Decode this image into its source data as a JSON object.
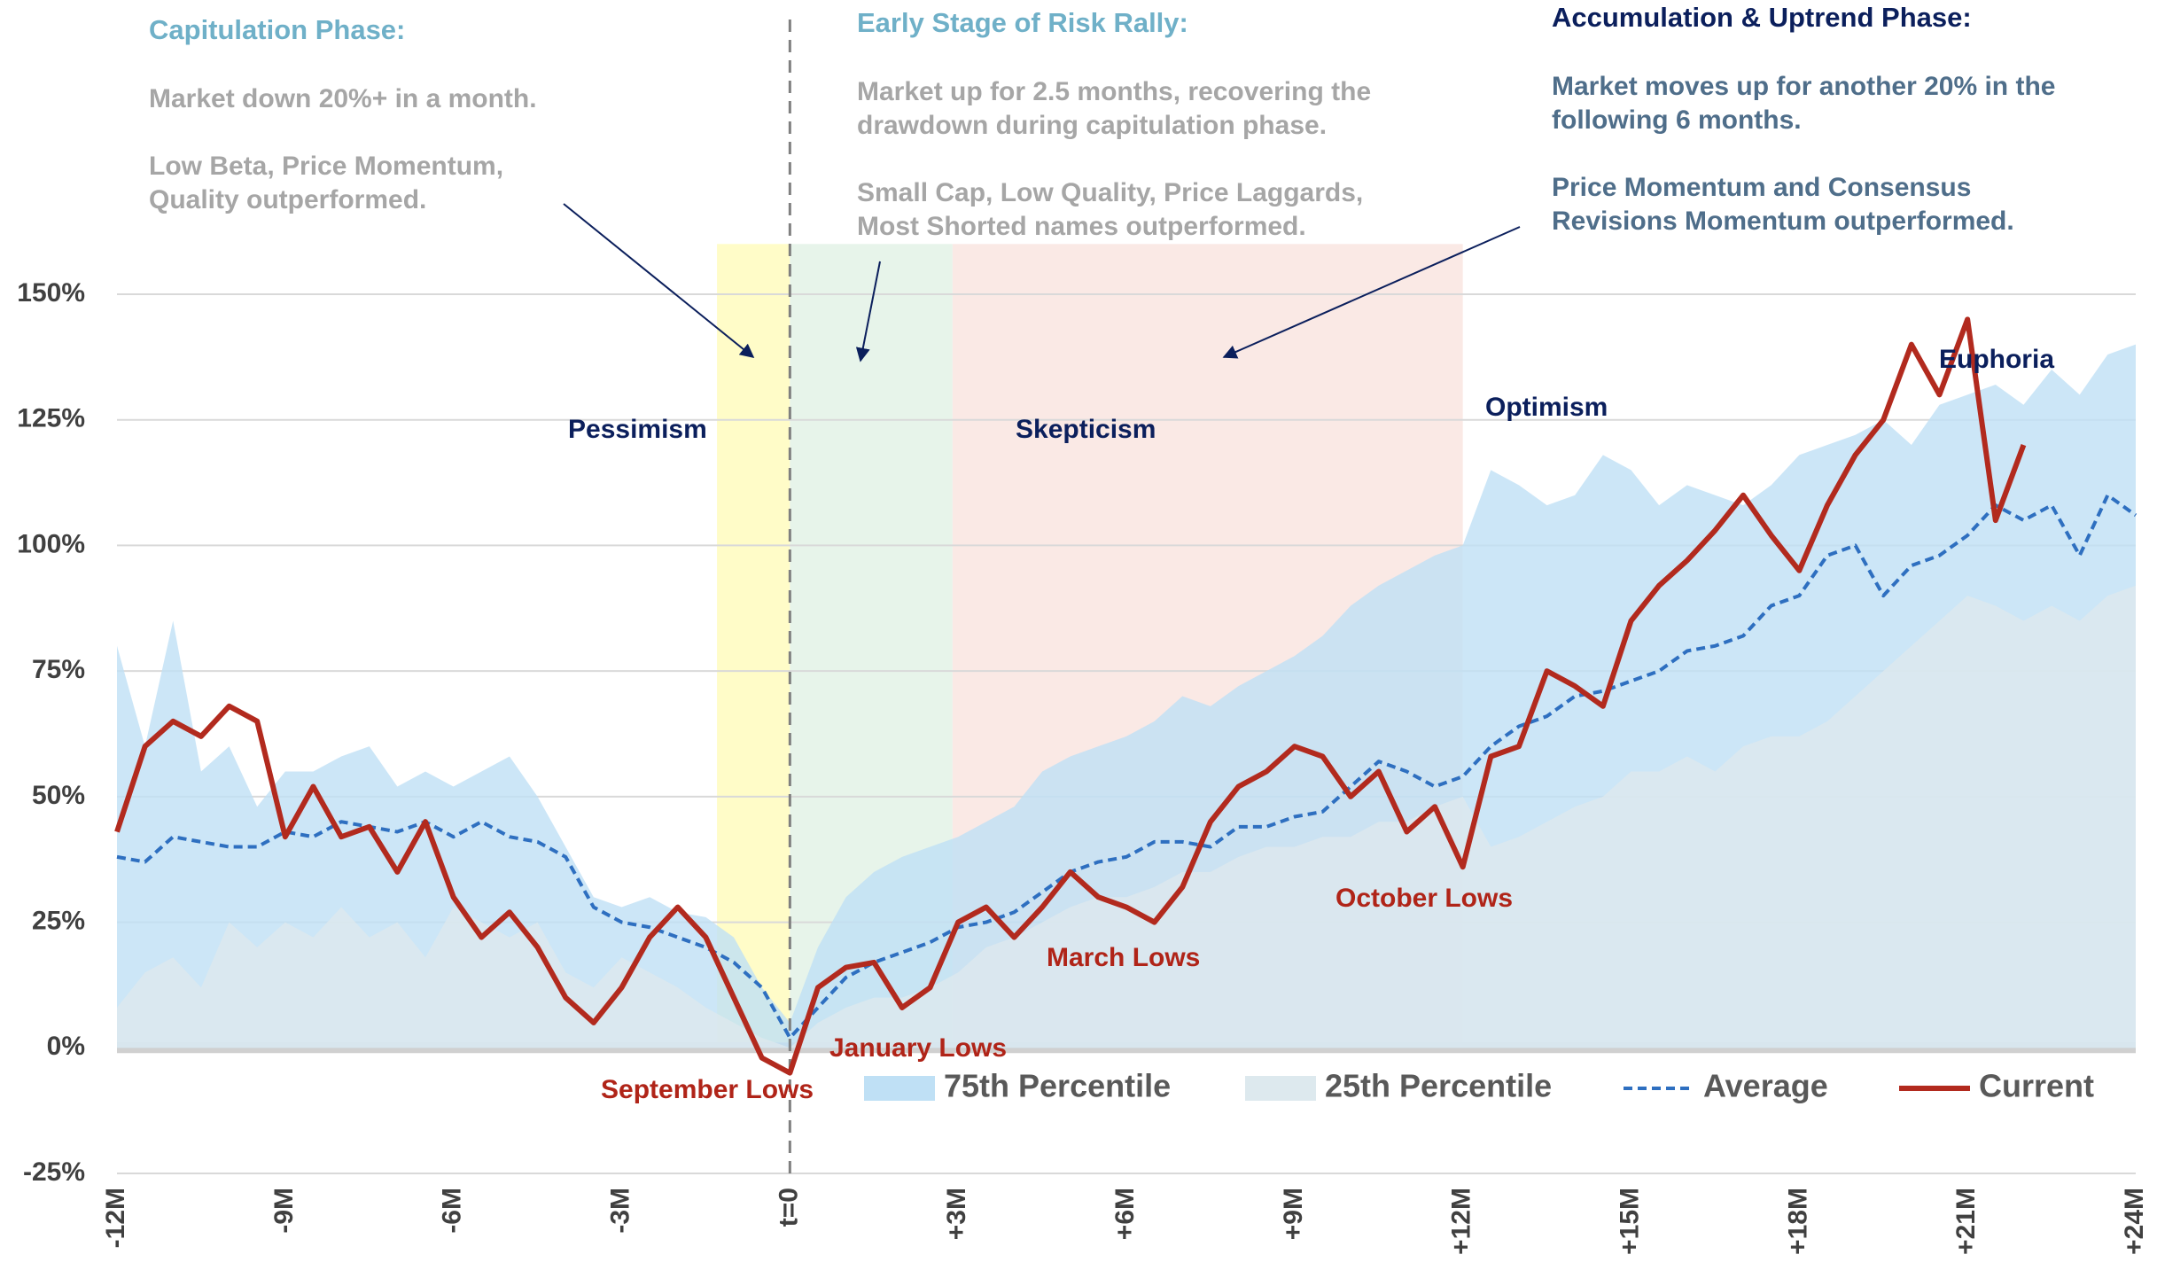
{
  "chart_data": {
    "type": "line",
    "x": [
      -12,
      -11.5,
      -11,
      -10.5,
      -10,
      -9.5,
      -9,
      -8.5,
      -8,
      -7.5,
      -7,
      -6.5,
      -6,
      -5.5,
      -5,
      -4.5,
      -4,
      -3.5,
      -3,
      -2.5,
      -2,
      -1.5,
      -1,
      -0.5,
      0,
      0.5,
      1,
      1.5,
      2,
      2.5,
      3,
      3.5,
      4,
      4.5,
      5,
      5.5,
      6,
      6.5,
      7,
      7.5,
      8,
      8.5,
      9,
      9.5,
      10,
      10.5,
      11,
      11.5,
      12,
      12.5,
      13,
      13.5,
      14,
      14.5,
      15,
      15.5,
      16,
      16.5,
      17,
      17.5,
      18,
      18.5,
      19,
      19.5,
      20,
      20.5,
      21,
      21.5,
      22,
      22.5,
      23,
      23.5,
      24
    ],
    "series": [
      {
        "name": "75th Percentile",
        "kind": "area",
        "color": "#bfe0f5",
        "values": [
          80,
          60,
          85,
          55,
          60,
          48,
          55,
          55,
          58,
          60,
          52,
          55,
          52,
          55,
          58,
          50,
          40,
          30,
          28,
          30,
          27,
          26,
          22,
          12,
          5,
          20,
          30,
          35,
          38,
          40,
          42,
          45,
          48,
          55,
          58,
          60,
          62,
          65,
          70,
          68,
          72,
          75,
          78,
          82,
          88,
          92,
          95,
          98,
          100,
          115,
          112,
          108,
          110,
          118,
          115,
          108,
          112,
          110,
          108,
          112,
          118,
          120,
          122,
          125,
          120,
          128,
          130,
          132,
          128,
          135,
          130,
          138,
          140
        ]
      },
      {
        "name": "25th Percentile",
        "kind": "area",
        "color": "#dde9ee",
        "values": [
          8,
          15,
          18,
          12,
          25,
          20,
          25,
          22,
          28,
          22,
          25,
          18,
          28,
          25,
          22,
          25,
          15,
          12,
          18,
          15,
          12,
          8,
          5,
          2,
          0,
          5,
          8,
          10,
          10,
          12,
          15,
          20,
          22,
          25,
          28,
          30,
          30,
          32,
          35,
          35,
          38,
          40,
          40,
          42,
          42,
          45,
          45,
          48,
          50,
          40,
          42,
          45,
          48,
          50,
          55,
          55,
          58,
          55,
          60,
          62,
          62,
          65,
          70,
          75,
          80,
          85,
          90,
          88,
          85,
          88,
          85,
          90,
          92
        ]
      },
      {
        "name": "Average",
        "kind": "line",
        "dashed": true,
        "color": "#2e6fc0",
        "values": [
          38,
          37,
          42,
          41,
          40,
          40,
          43,
          42,
          45,
          44,
          43,
          45,
          42,
          45,
          42,
          41,
          38,
          28,
          25,
          24,
          22,
          20,
          17,
          12,
          2,
          8,
          14,
          17,
          19,
          21,
          24,
          25,
          27,
          31,
          35,
          37,
          38,
          41,
          41,
          40,
          44,
          44,
          46,
          47,
          52,
          57,
          55,
          52,
          54,
          60,
          64,
          66,
          70,
          71,
          73,
          75,
          79,
          80,
          82,
          88,
          90,
          98,
          100,
          90,
          96,
          98,
          102,
          108,
          105,
          108,
          98,
          110,
          106
        ]
      },
      {
        "name": "Current",
        "kind": "line",
        "dashed": false,
        "color": "#b22a1e",
        "values": [
          43,
          60,
          65,
          62,
          68,
          65,
          42,
          52,
          42,
          44,
          35,
          45,
          30,
          22,
          27,
          20,
          10,
          5,
          12,
          22,
          28,
          22,
          10,
          -2,
          -5,
          12,
          16,
          17,
          8,
          12,
          25,
          28,
          22,
          28,
          35,
          30,
          28,
          25,
          32,
          45,
          52,
          55,
          60,
          58,
          50,
          55,
          43,
          48,
          36,
          58,
          60,
          75,
          72,
          68,
          85,
          92,
          97,
          103,
          110,
          102,
          95,
          108,
          118,
          125,
          140,
          130,
          145,
          105,
          120,
          null,
          null,
          null,
          null
        ]
      }
    ],
    "xlim": [
      -12,
      24
    ],
    "xticks": [
      {
        "value": -12,
        "label": "-12M"
      },
      {
        "value": -9,
        "label": "-9M"
      },
      {
        "value": -6,
        "label": "-6M"
      },
      {
        "value": -3,
        "label": "-3M"
      },
      {
        "value": 0,
        "label": "t=0"
      },
      {
        "value": 3,
        "label": "+3M"
      },
      {
        "value": 6,
        "label": "+6M"
      },
      {
        "value": 9,
        "label": "+9M"
      },
      {
        "value": 12,
        "label": "+12M"
      },
      {
        "value": 15,
        "label": "+15M"
      },
      {
        "value": 18,
        "label": "+18M"
      },
      {
        "value": 21,
        "label": "+21M"
      },
      {
        "value": 24,
        "label": "+24M"
      }
    ],
    "ylim": [
      -25,
      160
    ],
    "yticks": [
      {
        "value": -25,
        "label": "-25%"
      },
      {
        "value": 0,
        "label": "0%"
      },
      {
        "value": 25,
        "label": "25%"
      },
      {
        "value": 50,
        "label": "50%"
      },
      {
        "value": 75,
        "label": "75%"
      },
      {
        "value": 100,
        "label": "100%"
      },
      {
        "value": 125,
        "label": "125%"
      },
      {
        "value": 150,
        "label": "150%"
      }
    ],
    "grid": true,
    "legend": "bottom",
    "phases": [
      {
        "start": -1.3,
        "end": 0,
        "color": "#fffcc8"
      },
      {
        "start": 0,
        "end": 2.9,
        "color": "#e7f4ea"
      },
      {
        "start": 2.9,
        "end": 12,
        "color": "#fae9e5"
      }
    ],
    "annotations": [
      {
        "title": "Capitulation Phase:",
        "color": "#6fb0c8",
        "body_color": "#a6a6a6",
        "paragraphs": [
          [
            "Market down 20%+ in a month."
          ],
          [
            "Low Beta, Price Momentum,",
            "Quality outperformed."
          ]
        ]
      },
      {
        "title": "Early Stage of Risk Rally:",
        "color": "#6fb0c8",
        "body_color": "#a6a6a6",
        "paragraphs": [
          [
            "Market up for 2.5 months, recovering the",
            "drawdown during capitulation phase."
          ],
          [
            "Small Cap, Low Quality, Price Laggards,",
            "Most Shorted names outperformed."
          ]
        ]
      },
      {
        "title": "Accumulation & Uptrend Phase:",
        "color": "#0b1f5c",
        "body_color": "#4f6e8a",
        "paragraphs": [
          [
            "Market moves up for another 20% in the",
            "following 6 months."
          ],
          [
            "Price Momentum and Consensus",
            "Revisions Momentum outperformed."
          ]
        ]
      }
    ],
    "phase_labels": [
      "Pessimism",
      "Skepticism",
      "Optimism",
      "Euphoria"
    ],
    "event_labels": [
      "September Lows",
      "January Lows",
      "March Lows",
      "October Lows"
    ]
  }
}
